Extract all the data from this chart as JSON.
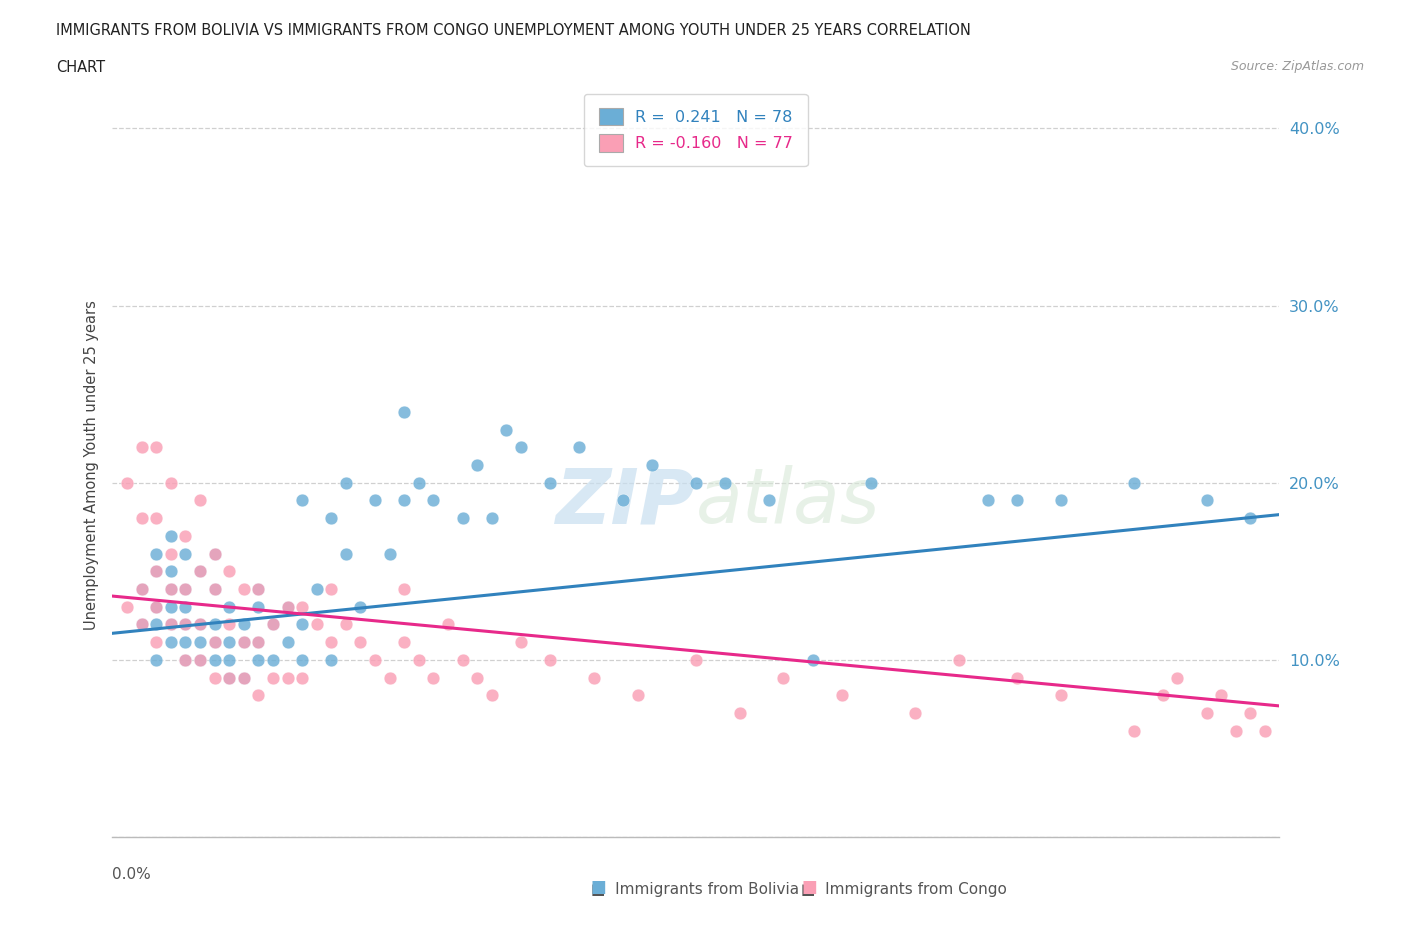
{
  "title_line1": "IMMIGRANTS FROM BOLIVIA VS IMMIGRANTS FROM CONGO UNEMPLOYMENT AMONG YOUTH UNDER 25 YEARS CORRELATION",
  "title_line2": "CHART",
  "source": "Source: ZipAtlas.com",
  "ylabel": "Unemployment Among Youth under 25 years",
  "xlim": [
    0.0,
    0.08
  ],
  "ylim": [
    0.0,
    0.42
  ],
  "yticks": [
    0.0,
    0.1,
    0.2,
    0.3,
    0.4
  ],
  "ytick_labels": [
    "",
    "10.0%",
    "20.0%",
    "30.0%",
    "40.0%"
  ],
  "bolivia_color": "#6baed6",
  "congo_color": "#fa9fb5",
  "bolivia_line_color": "#3182bd",
  "congo_line_color": "#e7298a",
  "bolivia_R": "0.241",
  "bolivia_N": "78",
  "congo_R": "-0.160",
  "congo_N": "77",
  "bolivia_trend_y0": 0.115,
  "bolivia_trend_y1": 0.182,
  "congo_trend_y0": 0.136,
  "congo_trend_y1": 0.074,
  "watermark_zip": "ZIP",
  "watermark_atlas": "atlas",
  "background_color": "#ffffff",
  "grid_color": "#d0d0d0",
  "bolivia_scatter_x": [
    0.002,
    0.002,
    0.003,
    0.003,
    0.003,
    0.003,
    0.003,
    0.004,
    0.004,
    0.004,
    0.004,
    0.004,
    0.004,
    0.005,
    0.005,
    0.005,
    0.005,
    0.005,
    0.005,
    0.006,
    0.006,
    0.006,
    0.006,
    0.007,
    0.007,
    0.007,
    0.007,
    0.007,
    0.008,
    0.008,
    0.008,
    0.008,
    0.009,
    0.009,
    0.009,
    0.01,
    0.01,
    0.01,
    0.01,
    0.011,
    0.011,
    0.012,
    0.012,
    0.013,
    0.013,
    0.013,
    0.014,
    0.015,
    0.015,
    0.016,
    0.016,
    0.017,
    0.018,
    0.019,
    0.02,
    0.02,
    0.021,
    0.022,
    0.024,
    0.025,
    0.026,
    0.027,
    0.028,
    0.03,
    0.032,
    0.035,
    0.037,
    0.04,
    0.042,
    0.045,
    0.048,
    0.052,
    0.06,
    0.062,
    0.065,
    0.07,
    0.075,
    0.078
  ],
  "bolivia_scatter_y": [
    0.12,
    0.14,
    0.1,
    0.12,
    0.13,
    0.15,
    0.16,
    0.11,
    0.12,
    0.13,
    0.14,
    0.15,
    0.17,
    0.1,
    0.11,
    0.12,
    0.13,
    0.14,
    0.16,
    0.1,
    0.11,
    0.12,
    0.15,
    0.1,
    0.11,
    0.12,
    0.14,
    0.16,
    0.09,
    0.1,
    0.11,
    0.13,
    0.09,
    0.11,
    0.12,
    0.1,
    0.11,
    0.13,
    0.14,
    0.1,
    0.12,
    0.11,
    0.13,
    0.1,
    0.12,
    0.19,
    0.14,
    0.1,
    0.18,
    0.16,
    0.2,
    0.13,
    0.19,
    0.16,
    0.24,
    0.19,
    0.2,
    0.19,
    0.18,
    0.21,
    0.18,
    0.23,
    0.22,
    0.2,
    0.22,
    0.19,
    0.21,
    0.2,
    0.2,
    0.19,
    0.1,
    0.2,
    0.19,
    0.19,
    0.19,
    0.2,
    0.19,
    0.18
  ],
  "congo_scatter_x": [
    0.001,
    0.001,
    0.002,
    0.002,
    0.002,
    0.002,
    0.003,
    0.003,
    0.003,
    0.003,
    0.003,
    0.004,
    0.004,
    0.004,
    0.004,
    0.005,
    0.005,
    0.005,
    0.005,
    0.006,
    0.006,
    0.006,
    0.006,
    0.007,
    0.007,
    0.007,
    0.007,
    0.008,
    0.008,
    0.008,
    0.009,
    0.009,
    0.009,
    0.01,
    0.01,
    0.01,
    0.011,
    0.011,
    0.012,
    0.012,
    0.013,
    0.013,
    0.014,
    0.015,
    0.015,
    0.016,
    0.017,
    0.018,
    0.019,
    0.02,
    0.02,
    0.021,
    0.022,
    0.023,
    0.024,
    0.025,
    0.026,
    0.028,
    0.03,
    0.033,
    0.036,
    0.04,
    0.043,
    0.046,
    0.05,
    0.055,
    0.058,
    0.062,
    0.065,
    0.07,
    0.072,
    0.073,
    0.075,
    0.076,
    0.077,
    0.078,
    0.079
  ],
  "congo_scatter_y": [
    0.13,
    0.2,
    0.12,
    0.14,
    0.18,
    0.22,
    0.11,
    0.13,
    0.15,
    0.18,
    0.22,
    0.12,
    0.14,
    0.16,
    0.2,
    0.1,
    0.12,
    0.14,
    0.17,
    0.1,
    0.12,
    0.15,
    0.19,
    0.09,
    0.11,
    0.14,
    0.16,
    0.09,
    0.12,
    0.15,
    0.09,
    0.11,
    0.14,
    0.08,
    0.11,
    0.14,
    0.09,
    0.12,
    0.09,
    0.13,
    0.09,
    0.13,
    0.12,
    0.11,
    0.14,
    0.12,
    0.11,
    0.1,
    0.09,
    0.11,
    0.14,
    0.1,
    0.09,
    0.12,
    0.1,
    0.09,
    0.08,
    0.11,
    0.1,
    0.09,
    0.08,
    0.1,
    0.07,
    0.09,
    0.08,
    0.07,
    0.1,
    0.09,
    0.08,
    0.06,
    0.08,
    0.09,
    0.07,
    0.08,
    0.06,
    0.07,
    0.06
  ]
}
